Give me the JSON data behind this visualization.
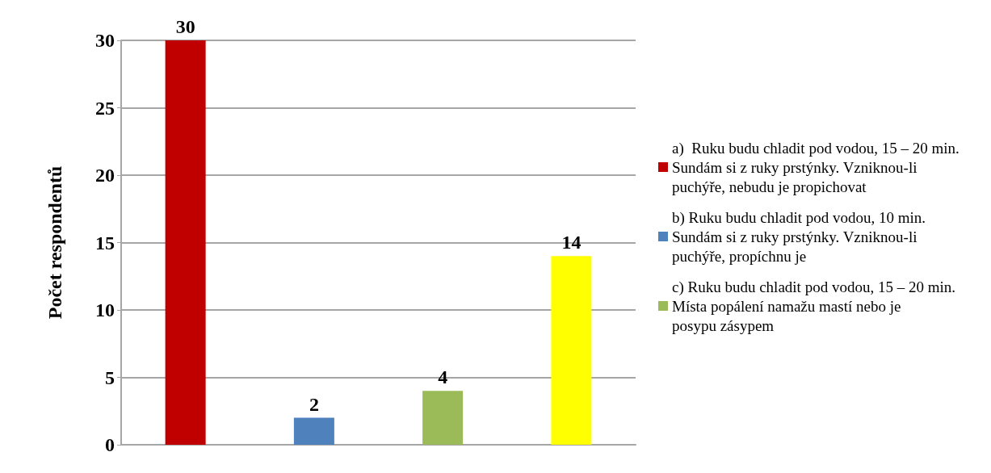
{
  "chart_data": {
    "type": "bar",
    "ylabel": "Počet respondentů",
    "categories": [
      null,
      null,
      null,
      null
    ],
    "series": [
      {
        "name": "a)  Ruku budu chladit pod vodou, 15 – 20 min. Sundám si z ruky prstýnky. Vzniknou-li puchýře, nebudu je propichovat",
        "color": "#c00000",
        "values": [
          30,
          null,
          null,
          null
        ]
      },
      {
        "name": "b) Ruku budu chladit pod vodou, 10 min. Sundám si z ruky prstýnky. Vzniknou-li puchýře, propíchnu je",
        "color": "#4f81bd",
        "values": [
          null,
          2,
          null,
          null
        ]
      },
      {
        "name": "c) Ruku budu chladit pod vodou, 15 – 20 min. Místa popálení namažu mastí nebo je posypu zásypem",
        "color": "#9bbb59",
        "values": [
          null,
          null,
          4,
          null
        ]
      },
      {
        "color": "#ffff00",
        "values": [
          null,
          null,
          null,
          14
        ]
      }
    ],
    "ylim": [
      0,
      30
    ],
    "yticks": [
      0,
      5,
      10,
      15,
      20,
      25,
      30
    ],
    "grid": "y",
    "legend": "right",
    "data_labels": true
  }
}
